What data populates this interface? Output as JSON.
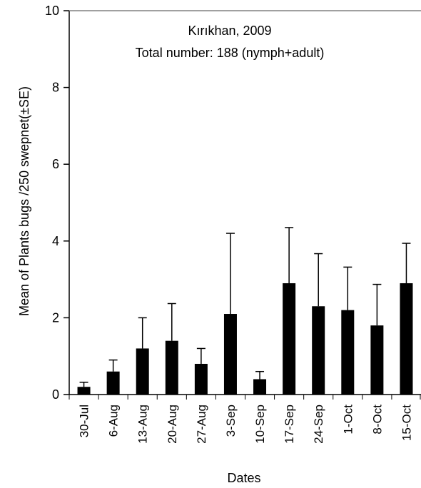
{
  "chart_data": {
    "type": "bar",
    "title": "Kırıkhan, 2009",
    "subtitle": "Total number: 188 (nymph+adult)",
    "xlabel": "Dates",
    "ylabel": "Mean of Plants bugs /250 swepnet(±SE)",
    "ylim": [
      0,
      10
    ],
    "yticks": [
      "0",
      "2",
      "4",
      "6",
      "8",
      "10"
    ],
    "categories": [
      "30-Jul",
      "6-Aug",
      "13-Aug",
      "20-Aug",
      "27-Aug",
      "3-Sep",
      "10-Sep",
      "17-Sep",
      "24-Sep",
      "1-Oct",
      "8-Oct",
      "15-Oct"
    ],
    "values": [
      0.2,
      0.6,
      1.2,
      1.4,
      0.8,
      2.1,
      0.4,
      2.9,
      2.3,
      2.2,
      1.8,
      2.9
    ],
    "errors": [
      0.12,
      0.3,
      0.8,
      0.97,
      0.4,
      2.1,
      0.2,
      1.45,
      1.37,
      1.12,
      1.07,
      1.04
    ],
    "grid": false,
    "legend": "none",
    "bar_color": "#000000"
  }
}
